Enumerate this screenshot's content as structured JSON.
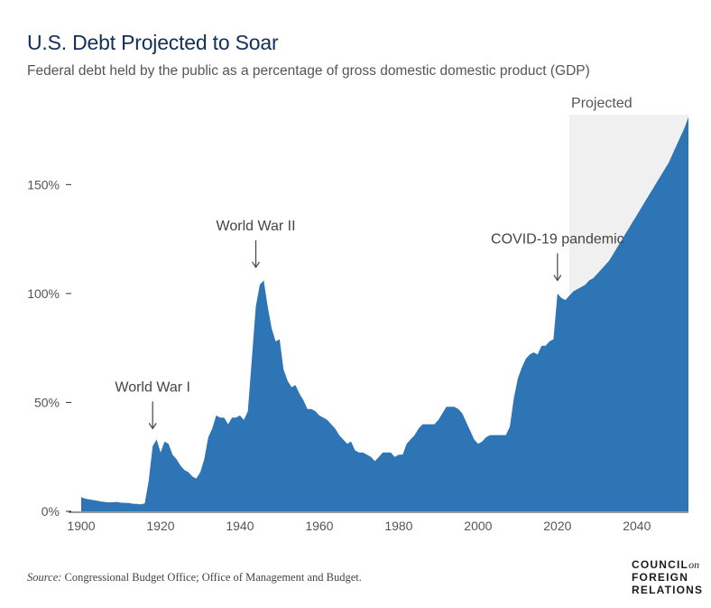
{
  "title": "U.S. Debt Projected to Soar",
  "subtitle": "Federal debt held by the public as a percentage of gross domestic domestic product (GDP)",
  "source_label": "Source:",
  "source_text": " Congressional Budget Office; Office of Management and Budget.",
  "logo": {
    "line1": "COUNCIL",
    "line1_suffix": "on",
    "line2": "FOREIGN",
    "line3": "RELATIONS"
  },
  "colors": {
    "area": "#2e75b6",
    "projected_bg": "#f0f0f0",
    "axis": "#333333"
  },
  "chart_data": {
    "type": "area",
    "title": "U.S. Debt Projected to Soar",
    "xlabel": "",
    "ylabel": "",
    "xlim": [
      1900,
      2053
    ],
    "ylim": [
      0,
      180
    ],
    "x_ticks": [
      1900,
      1920,
      1940,
      1960,
      1980,
      2000,
      2020,
      2040
    ],
    "x_tick_labels": [
      "1900",
      "1920",
      "1940",
      "1960",
      "1980",
      "2000",
      "2020",
      "2040"
    ],
    "y_ticks": [
      0,
      50,
      100,
      150
    ],
    "y_tick_labels": [
      "0%",
      "50%",
      "100%",
      "150%"
    ],
    "grid": false,
    "projected_region": {
      "label": "Projected",
      "start": 2023,
      "end": 2053
    },
    "annotations": [
      {
        "text": "World War I",
        "x": 1918,
        "y": 38
      },
      {
        "text": "World War II",
        "x": 1944,
        "y": 112
      },
      {
        "text": "COVID-19 pandemic",
        "x": 2020,
        "y": 106
      }
    ],
    "series": [
      {
        "x": [
          1900,
          1901,
          1902,
          1903,
          1904,
          1905,
          1906,
          1907,
          1908,
          1909,
          1910,
          1911,
          1912,
          1913,
          1914,
          1915,
          1916,
          1917,
          1918,
          1919,
          1920,
          1921,
          1922,
          1923,
          1924,
          1925,
          1926,
          1927,
          1928,
          1929,
          1930,
          1931,
          1932,
          1933,
          1934,
          1935,
          1936,
          1937,
          1938,
          1939,
          1940,
          1941,
          1942,
          1943,
          1944,
          1945,
          1946,
          1947,
          1948,
          1949,
          1950,
          1951,
          1952,
          1953,
          1954,
          1955,
          1956,
          1957,
          1958,
          1959,
          1960,
          1961,
          1962,
          1963,
          1964,
          1965,
          1966,
          1967,
          1968,
          1969,
          1970,
          1971,
          1972,
          1973,
          1974,
          1975,
          1976,
          1977,
          1978,
          1979,
          1980,
          1981,
          1982,
          1983,
          1984,
          1985,
          1986,
          1987,
          1988,
          1989,
          1990,
          1991,
          1992,
          1993,
          1994,
          1995,
          1996,
          1997,
          1998,
          1999,
          2000,
          2001,
          2002,
          2003,
          2004,
          2005,
          2006,
          2007,
          2008,
          2009,
          2010,
          2011,
          2012,
          2013,
          2014,
          2015,
          2016,
          2017,
          2018,
          2019,
          2020,
          2021,
          2022,
          2023,
          2024,
          2025,
          2026,
          2027,
          2028,
          2029,
          2030,
          2031,
          2032,
          2033,
          2034,
          2035,
          2036,
          2037,
          2038,
          2039,
          2040,
          2041,
          2042,
          2043,
          2044,
          2045,
          2046,
          2047,
          2048,
          2049,
          2050,
          2051,
          2052,
          2053
        ],
        "values": [
          6.5,
          5.8,
          5.5,
          5.2,
          4.9,
          4.5,
          4.3,
          4.1,
          4.2,
          4.3,
          4.0,
          3.9,
          3.8,
          3.5,
          3.4,
          3.2,
          3.6,
          14,
          30,
          33,
          27,
          32,
          31,
          26,
          24,
          21,
          19,
          18,
          16,
          15,
          18,
          24,
          34,
          38,
          44,
          43,
          43,
          40,
          43,
          43,
          44,
          42,
          46,
          70,
          94,
          104,
          106,
          94,
          84,
          78,
          79,
          65,
          60,
          57,
          58,
          54,
          51,
          47,
          47,
          46,
          44,
          43,
          42,
          40,
          38,
          35,
          33,
          31,
          32,
          28,
          27,
          27,
          26,
          25,
          23,
          25,
          27,
          27,
          27,
          25,
          26,
          26,
          31,
          33,
          35,
          38,
          40,
          40,
          40,
          40,
          42,
          45,
          48,
          48,
          48,
          47,
          45,
          41,
          37,
          33,
          31,
          32,
          34,
          35,
          35,
          35,
          35,
          35,
          39,
          52,
          61,
          66,
          70,
          72,
          73,
          72,
          76,
          76,
          78,
          79,
          100,
          98,
          97,
          99,
          101,
          102,
          103,
          104,
          106,
          107,
          109,
          111,
          113,
          115,
          118,
          121,
          124,
          127,
          130,
          133,
          136,
          139,
          142,
          145,
          148,
          151,
          154,
          157,
          160,
          164,
          168,
          172,
          176,
          181
        ]
      }
    ]
  }
}
